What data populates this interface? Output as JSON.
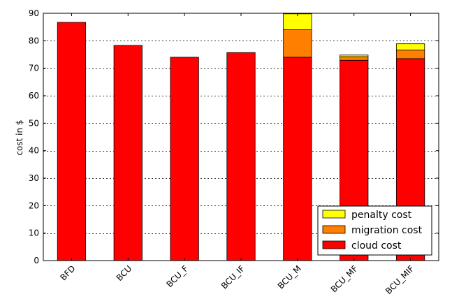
{
  "chart_data": {
    "type": "bar",
    "stacked": true,
    "title": "",
    "xlabel": "",
    "ylabel": "cost in $",
    "ylim": [
      0,
      90
    ],
    "yticks": [
      0,
      10,
      20,
      30,
      40,
      50,
      60,
      70,
      80,
      90
    ],
    "grid": "horizontal dotted",
    "categories": [
      "BFD",
      "BCU",
      "BCU_F",
      "BCU_IF",
      "BCU_M",
      "BCU_MF",
      "BCU_MIF"
    ],
    "series": [
      {
        "name": "cloud cost",
        "color": "#ff0000",
        "values": [
          86.7,
          78.3,
          74.0,
          75.7,
          74.0,
          72.9,
          73.5
        ]
      },
      {
        "name": "migration cost",
        "color": "#ff7f00",
        "values": [
          0,
          0,
          0,
          0,
          10.0,
          1.3,
          3.1
        ]
      },
      {
        "name": "penalty cost",
        "color": "#ffff00",
        "values": [
          0,
          0,
          0,
          0,
          5.8,
          0.6,
          2.3
        ]
      }
    ],
    "legend": {
      "position": "bottom-right",
      "order": [
        "penalty cost",
        "migration cost",
        "cloud cost"
      ]
    }
  }
}
